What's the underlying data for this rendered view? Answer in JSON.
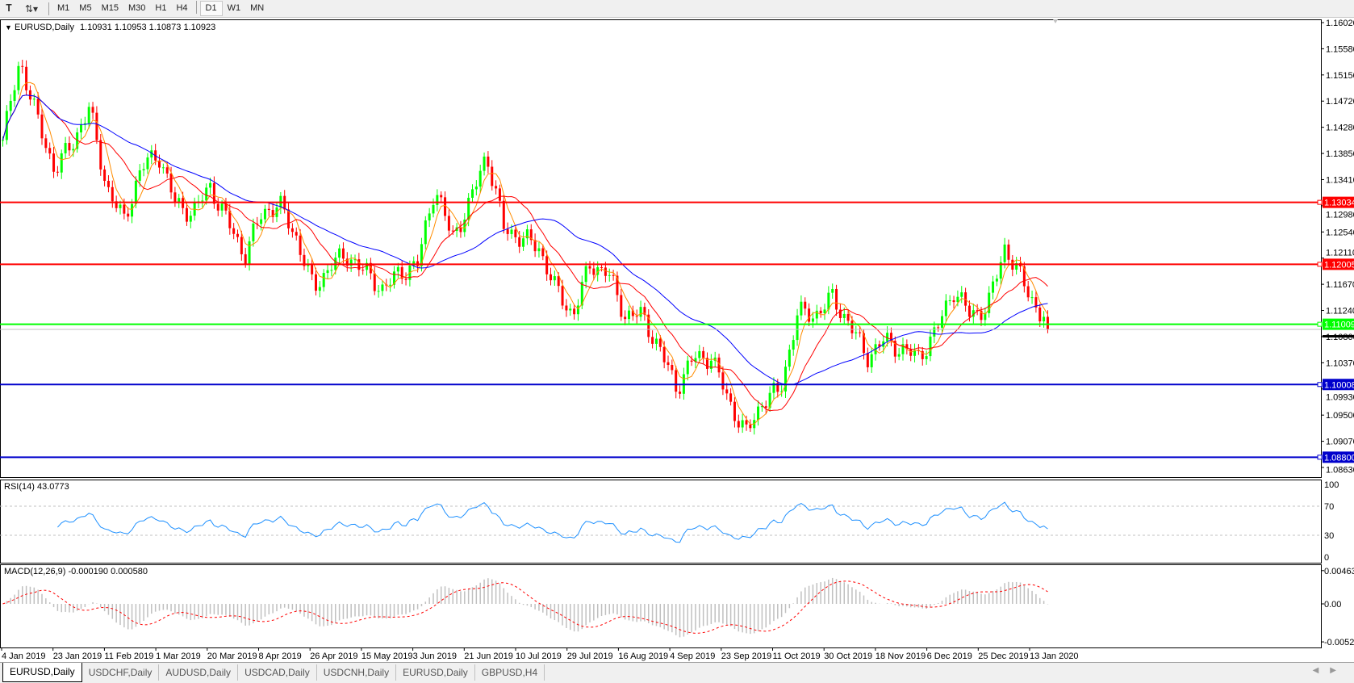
{
  "toolbar": {
    "icons": [
      "text-tool-icon",
      "objects-dropdown-icon"
    ],
    "timeframes": [
      "M1",
      "M5",
      "M15",
      "M30",
      "H1",
      "H4",
      "D1",
      "W1",
      "MN"
    ],
    "active_timeframe": "D1"
  },
  "header": {
    "symbol": "EURUSD,Daily",
    "ohlc": "1.10931 1.10953 1.10873 1.10923"
  },
  "chart_data": [
    {
      "type": "candlestick",
      "title": "EURUSD,Daily",
      "x_tick_labels": [
        "4 Jan 2019",
        "23 Jan 2019",
        "11 Feb 2019",
        "1 Mar 2019",
        "20 Mar 2019",
        "8 Apr 2019",
        "26 Apr 2019",
        "15 May 2019",
        "3 Jun 2019",
        "21 Jun 2019",
        "10 Jul 2019",
        "29 Jul 2019",
        "16 Aug 2019",
        "4 Sep 2019",
        "23 Sep 2019",
        "11 Oct 2019",
        "30 Oct 2019",
        "18 Nov 2019",
        "6 Dec 2019",
        "25 Dec 2019",
        "13 Jan 2020"
      ],
      "y_tick_labels": [
        "1.16020",
        "1.15580",
        "1.15150",
        "1.14720",
        "1.14280",
        "1.13850",
        "1.13410",
        "1.12980",
        "1.12540",
        "1.12110",
        "1.11670",
        "1.11240",
        "1.10800",
        "1.10370",
        "1.09930",
        "1.09500",
        "1.09070",
        "1.08630"
      ],
      "ylim": [
        1.0863,
        1.1602
      ],
      "close_samples": [
        1.1407,
        1.154,
        1.144,
        1.1357,
        1.14,
        1.146,
        1.133,
        1.1272,
        1.136,
        1.1385,
        1.13,
        1.1286,
        1.133,
        1.1272,
        1.1215,
        1.1286,
        1.13,
        1.1244,
        1.1159,
        1.1201,
        1.1215,
        1.1187,
        1.1159,
        1.1187,
        1.12,
        1.133,
        1.1244,
        1.13,
        1.1385,
        1.126,
        1.1244,
        1.123,
        1.1159,
        1.1116,
        1.1201,
        1.1187,
        1.1116,
        1.1116,
        1.106,
        1.0995,
        1.1046,
        1.1046,
        1.0975,
        1.0918,
        1.0975,
        1.099,
        1.112,
        1.1116,
        1.1145,
        1.1102,
        1.1046,
        1.1074,
        1.106,
        1.1046,
        1.1088,
        1.1159,
        1.1116,
        1.113,
        1.123,
        1.1173,
        1.112,
        1.1092
      ],
      "current_price": "1.10923",
      "moving_averages": [
        {
          "color": "#ff8c00"
        },
        {
          "color": "#ff0000"
        },
        {
          "color": "#0000ff"
        }
      ],
      "candle_colors": {
        "up": "#00ff00",
        "down": "#ff0000"
      },
      "horizontal_lines": [
        {
          "price": 1.13034,
          "label": "1.13034",
          "color": "#ff0000"
        },
        {
          "price": 1.12005,
          "label": "1.12005",
          "color": "#ff0000"
        },
        {
          "price": 1.11009,
          "label": "1.11009",
          "color": "#00ff00"
        },
        {
          "price": 1.10008,
          "label": "1.10008",
          "color": "#0000cc"
        },
        {
          "price": 1.088,
          "label": "1.08800",
          "color": "#0000cc"
        }
      ]
    },
    {
      "type": "line",
      "title": "RSI(14) 43.0773",
      "ylim": [
        0,
        100
      ],
      "y_tick_labels": [
        "100",
        "70",
        "30",
        "0"
      ],
      "levels": [
        70,
        30
      ],
      "color": "#1e90ff"
    },
    {
      "type": "bar",
      "title": "MACD(12,26,9) -0.000190 0.000580",
      "ylim": [
        -0.00529,
        0.00463
      ],
      "y_tick_labels": [
        "0.00463",
        "0.00",
        "-0.00529"
      ],
      "histogram_color": "#c0c0c0",
      "signal_color": "#ff0000"
    }
  ],
  "tabs": [
    "EURUSD,Daily",
    "USDCHF,Daily",
    "AUDUSD,Daily",
    "USDCAD,Daily",
    "USDCNH,Daily",
    "EURUSD,Daily",
    "GBPUSD,H4"
  ],
  "active_tab": 0
}
